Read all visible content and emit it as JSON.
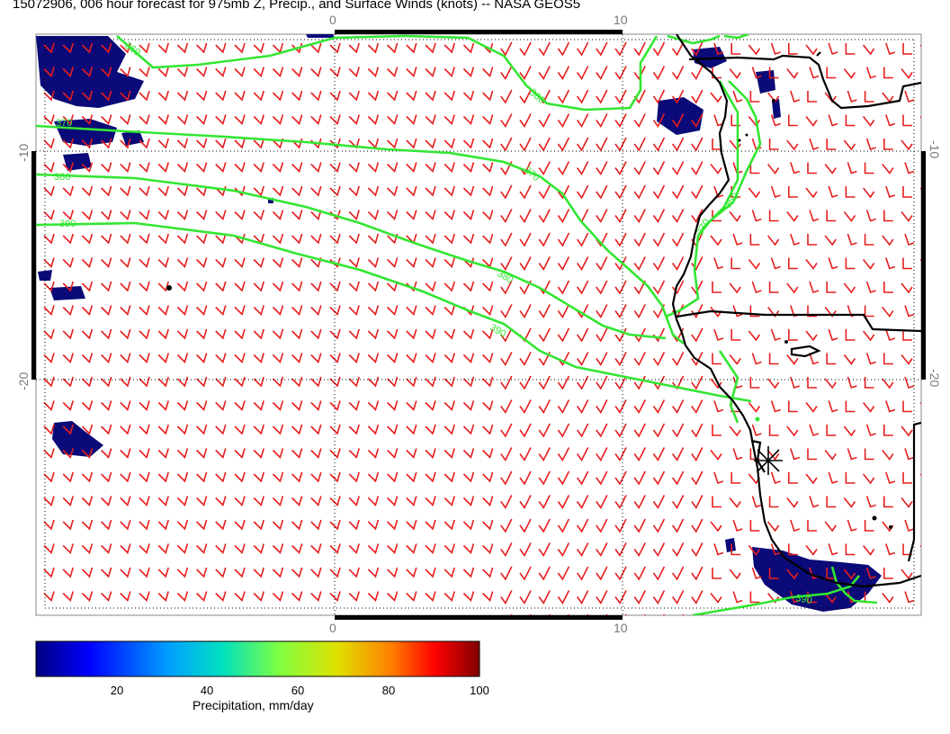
{
  "title": "15072906, 006 hour forecast for 975mb Z, Precip., and Surface Winds (knots) -- NASA GEOS5",
  "map": {
    "longitude_labels_top": [
      "0",
      "10"
    ],
    "longitude_labels_bottom": [
      "0",
      "10"
    ],
    "latitude_labels_left": [
      "-10",
      "-20"
    ],
    "latitude_labels_right": [
      "-10",
      "-20"
    ],
    "contour_labels": [
      "360",
      "370",
      "380",
      "390",
      "360",
      "370",
      "380",
      "390",
      "360",
      "370",
      "390"
    ],
    "contour_color": "#32e632",
    "wind_barb_color": "#e61e1e",
    "precip_fill_color": "#0a0a78",
    "coastline_color": "#000000"
  },
  "colorbar": {
    "label": "Precipitation, mm/day",
    "ticks": [
      "20",
      "40",
      "60",
      "80",
      "100"
    ],
    "range": [
      0,
      100
    ],
    "colormap_colors": [
      "#000080",
      "#0000ff",
      "#00a0ff",
      "#00e0c0",
      "#80ff40",
      "#e0e000",
      "#ff8000",
      "#ff0000",
      "#800000"
    ]
  }
}
